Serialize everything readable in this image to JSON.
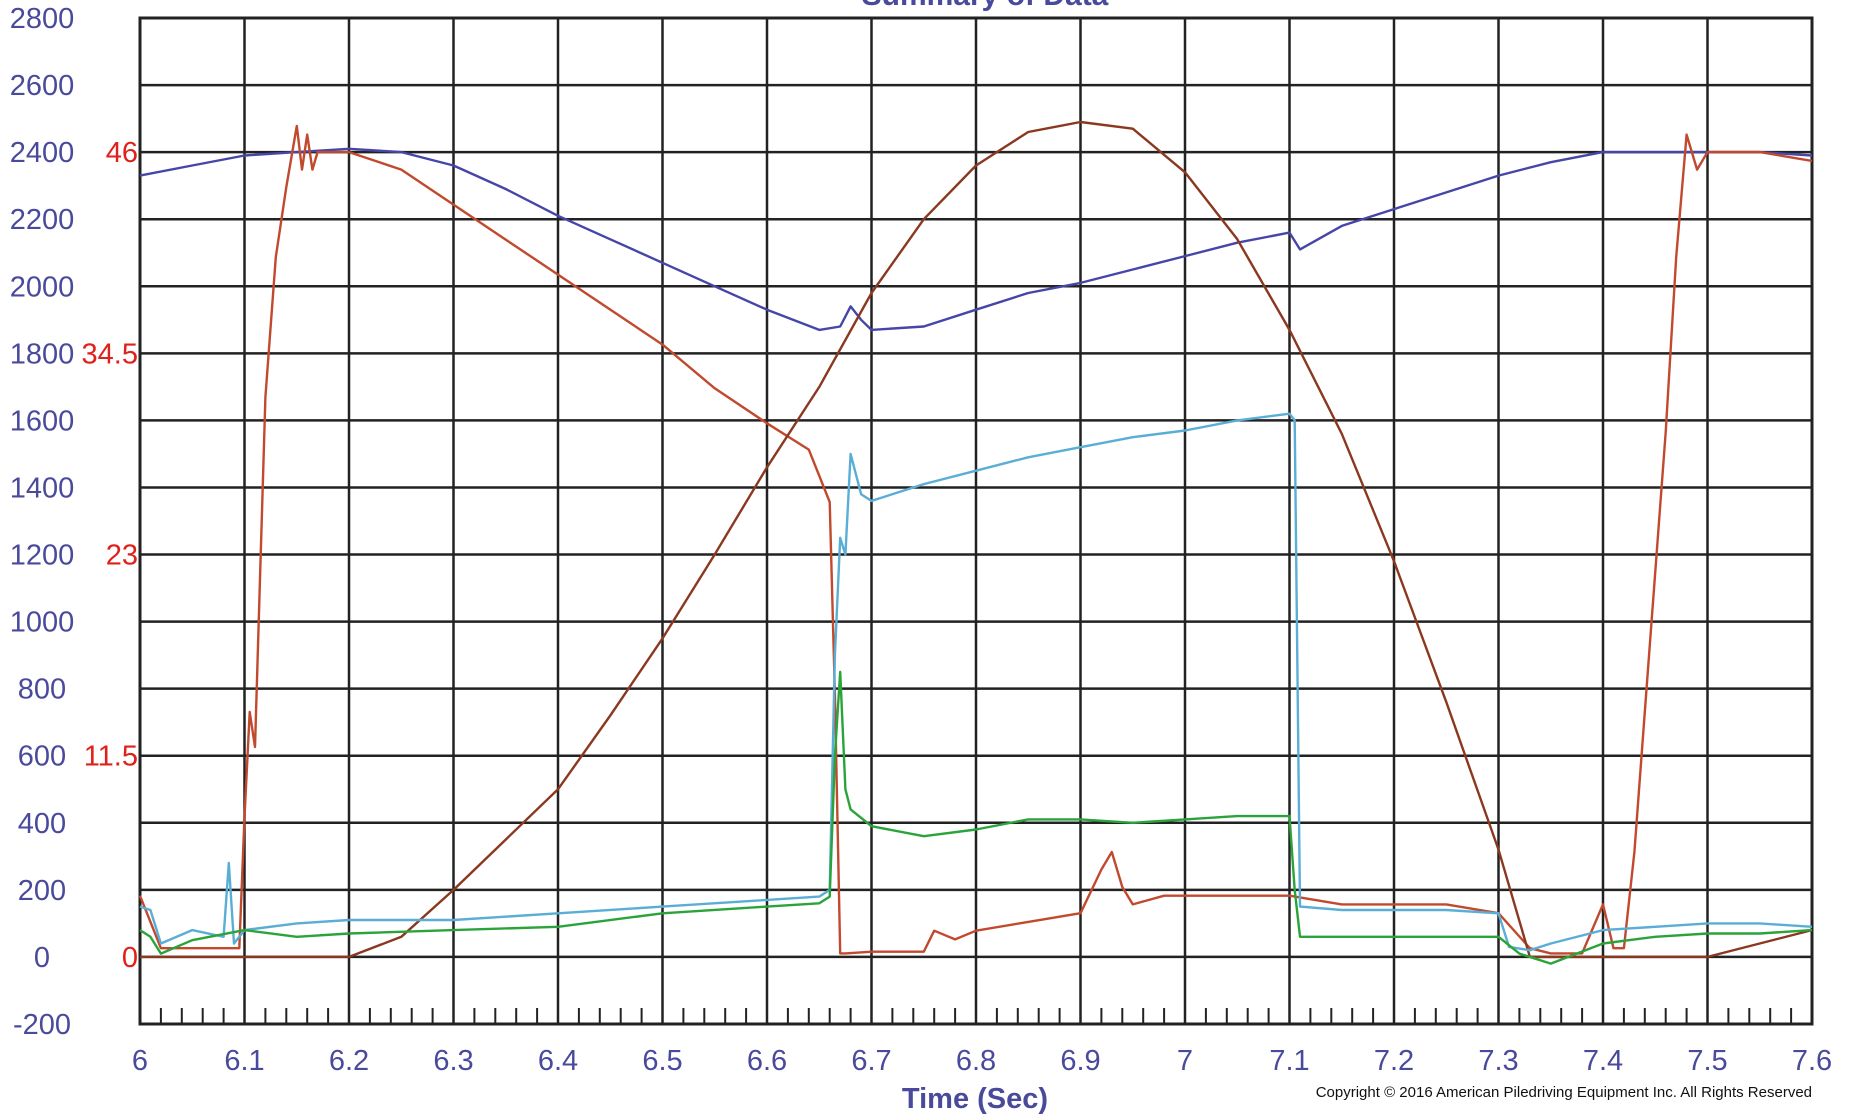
{
  "chart_data": {
    "type": "line",
    "title": "Summary of Data",
    "xlabel": "Time (Sec)",
    "ylabel": "",
    "xlim": [
      6,
      7.6
    ],
    "ylim": [
      -200,
      2800
    ],
    "x_ticks": [
      "6",
      "6.1",
      "6.2",
      "6.3",
      "6.4",
      "6.5",
      "6.6",
      "6.7",
      "6.8",
      "6.9",
      "7",
      "7.1",
      "7.2",
      "7.3",
      "7.4",
      "7.5",
      "7.6"
    ],
    "y_ticks_left": [
      "2800",
      "2600",
      "2400",
      "2200",
      "2000",
      "1800",
      "1600",
      "1400",
      "1200",
      "1000",
      "800",
      "600",
      "400",
      "200",
      "0",
      "-200"
    ],
    "y_ticks_right_axis": {
      "labels": [
        "46",
        "34.5",
        "23",
        "11.5",
        "0"
      ],
      "values": [
        46,
        34.5,
        23,
        11.5,
        0
      ],
      "color": "#e0201a"
    },
    "grid": true,
    "copyright": "Copyright © 2016 American Piledriving Equipment Inc. All Rights Reserved",
    "series": [
      {
        "color": "#4646a8",
        "x": [
          6.0,
          6.05,
          6.1,
          6.15,
          6.2,
          6.25,
          6.3,
          6.35,
          6.4,
          6.45,
          6.5,
          6.55,
          6.6,
          6.65,
          6.67,
          6.68,
          6.69,
          6.7,
          6.75,
          6.8,
          6.85,
          6.9,
          6.95,
          7.0,
          7.05,
          7.1,
          7.11,
          7.15,
          7.2,
          7.25,
          7.3,
          7.35,
          7.4,
          7.45,
          7.5,
          7.55,
          7.6
        ],
        "y": [
          2330,
          2360,
          2390,
          2400,
          2410,
          2400,
          2360,
          2290,
          2210,
          2140,
          2070,
          2000,
          1930,
          1870,
          1880,
          1940,
          1900,
          1870,
          1880,
          1930,
          1980,
          2010,
          2050,
          2090,
          2130,
          2160,
          2110,
          2180,
          2230,
          2280,
          2330,
          2370,
          2400,
          2400,
          2400,
          2400,
          2390
        ]
      },
      {
        "color": "#c14a2e",
        "x": [
          6.0,
          6.02,
          6.05,
          6.08,
          6.095,
          6.1,
          6.105,
          6.11,
          6.115,
          6.12,
          6.13,
          6.14,
          6.15,
          6.155,
          6.16,
          6.165,
          6.17,
          6.18,
          6.2,
          6.25,
          6.3,
          6.35,
          6.4,
          6.45,
          6.5,
          6.55,
          6.6,
          6.64,
          6.66,
          6.665,
          6.67,
          6.675,
          6.7,
          6.75,
          6.76,
          6.78,
          6.8,
          6.85,
          6.9,
          6.92,
          6.93,
          6.94,
          6.95,
          6.98,
          7.0,
          7.05,
          7.1,
          7.15,
          7.2,
          7.25,
          7.3,
          7.33,
          7.35,
          7.38,
          7.4,
          7.41,
          7.42,
          7.43,
          7.44,
          7.46,
          7.47,
          7.48,
          7.49,
          7.5,
          7.55,
          7.6
        ],
        "y": [
          3.5,
          0.5,
          0.5,
          0.5,
          0.5,
          8,
          14,
          12,
          22,
          32,
          40,
          44,
          47.5,
          45,
          47,
          45,
          46,
          46,
          46,
          45,
          43,
          41,
          39,
          37,
          35,
          32.5,
          30.5,
          29,
          26,
          15,
          0.2,
          0.2,
          0.3,
          0.3,
          1.5,
          1.0,
          1.5,
          2.0,
          2.5,
          5,
          6,
          4,
          3,
          3.5,
          3.5,
          3.5,
          3.5,
          3,
          3,
          3,
          2.5,
          0.5,
          0.2,
          0.2,
          3,
          0.5,
          0.5,
          6,
          14,
          30,
          40,
          47,
          45,
          46,
          46,
          45.5
        ]
      },
      {
        "color": "#8a3820",
        "x": [
          6.0,
          6.1,
          6.2,
          6.25,
          6.3,
          6.35,
          6.4,
          6.45,
          6.5,
          6.55,
          6.6,
          6.65,
          6.7,
          6.75,
          6.8,
          6.85,
          6.9,
          6.95,
          7.0,
          7.05,
          7.1,
          7.15,
          7.2,
          7.25,
          7.3,
          7.33,
          7.35,
          7.4,
          7.45,
          7.5,
          7.6
        ],
        "y": [
          0,
          0,
          0,
          60,
          200,
          350,
          500,
          720,
          950,
          1200,
          1460,
          1700,
          1980,
          2200,
          2360,
          2460,
          2490,
          2470,
          2340,
          2140,
          1870,
          1560,
          1180,
          760,
          320,
          0,
          0,
          0,
          0,
          0,
          80
        ]
      },
      {
        "color": "#5aaed6",
        "x": [
          6.0,
          6.01,
          6.02,
          6.05,
          6.08,
          6.085,
          6.09,
          6.1,
          6.15,
          6.2,
          6.3,
          6.4,
          6.5,
          6.6,
          6.65,
          6.66,
          6.665,
          6.67,
          6.675,
          6.68,
          6.69,
          6.7,
          6.75,
          6.8,
          6.85,
          6.9,
          6.95,
          7.0,
          7.05,
          7.1,
          7.105,
          7.11,
          7.15,
          7.2,
          7.25,
          7.3,
          7.31,
          7.33,
          7.35,
          7.4,
          7.45,
          7.5,
          7.55,
          7.6
        ],
        "y": [
          150,
          140,
          40,
          80,
          60,
          280,
          40,
          80,
          100,
          110,
          110,
          130,
          150,
          170,
          180,
          200,
          900,
          1250,
          1200,
          1500,
          1380,
          1360,
          1410,
          1450,
          1490,
          1520,
          1550,
          1570,
          1600,
          1620,
          1600,
          150,
          140,
          140,
          140,
          130,
          30,
          20,
          40,
          80,
          90,
          100,
          100,
          90
        ]
      },
      {
        "color": "#2aa43a",
        "x": [
          6.0,
          6.01,
          6.02,
          6.05,
          6.1,
          6.15,
          6.2,
          6.3,
          6.4,
          6.5,
          6.6,
          6.65,
          6.66,
          6.665,
          6.67,
          6.675,
          6.68,
          6.7,
          6.75,
          6.8,
          6.85,
          6.9,
          6.95,
          7.0,
          7.05,
          7.1,
          7.105,
          7.11,
          7.15,
          7.2,
          7.25,
          7.3,
          7.32,
          7.35,
          7.4,
          7.45,
          7.5,
          7.55,
          7.6
        ],
        "y": [
          80,
          60,
          10,
          50,
          80,
          60,
          70,
          80,
          90,
          130,
          150,
          160,
          180,
          600,
          850,
          500,
          440,
          390,
          360,
          380,
          410,
          410,
          400,
          410,
          420,
          420,
          200,
          60,
          60,
          60,
          60,
          60,
          10,
          -20,
          40,
          60,
          70,
          70,
          80
        ]
      }
    ]
  }
}
